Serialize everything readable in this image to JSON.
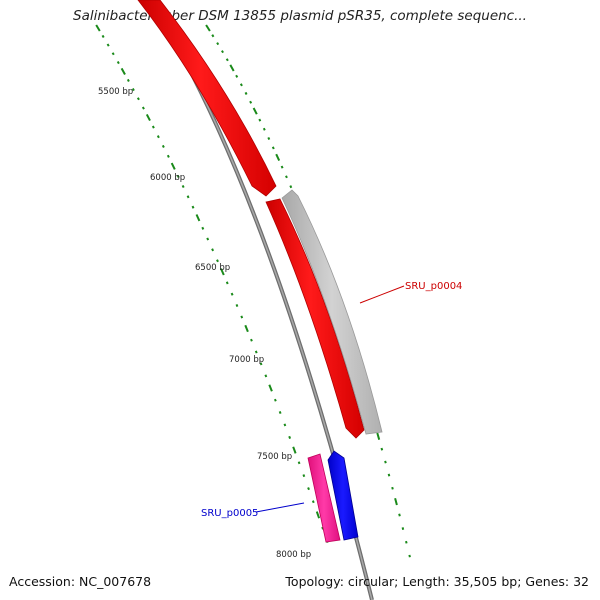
{
  "title": "Salinibacter ruber DSM 13855 plasmid pSR35, complete sequenc...",
  "footer": {
    "accession": "Accession: NC_007678",
    "summary": "Topology: circular; Length: 35,505 bp; Genes: 32"
  },
  "ticks": [
    {
      "label": "5500 bp"
    },
    {
      "label": "6000 bp"
    },
    {
      "label": "6500 bp"
    },
    {
      "label": "7000 bp"
    },
    {
      "label": "7500 bp"
    },
    {
      "label": "8000 bp"
    }
  ],
  "genes": [
    {
      "label": "SRU_p0004",
      "label_color": "#cc0000"
    },
    {
      "label": "SRU_p0005",
      "label_color": "#0000cc"
    }
  ],
  "colors": {
    "tick": "#1a8a1a",
    "backbone": "#808080",
    "red_gene": "#ff0000",
    "grey_gene": "#bdbdbd",
    "pink_gene": "#ff1493",
    "blue_gene": "#0000ff"
  }
}
